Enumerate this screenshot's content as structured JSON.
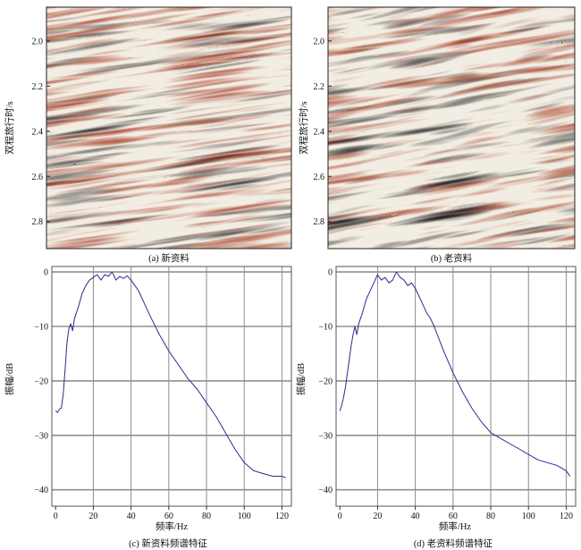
{
  "chart_data": [
    {
      "id": "a",
      "type": "heatmap",
      "caption": "(a) 新资料",
      "ylabel": "双程旅行时/s",
      "ylim": [
        1.85,
        2.92
      ],
      "yticks": [
        2.0,
        2.2,
        2.4,
        2.6,
        2.8
      ],
      "ytick_labels": [
        "2.0",
        "2.2",
        "2.4",
        "2.6",
        "2.8"
      ],
      "colors": {
        "positive": "#a0301c",
        "negative": "#111111",
        "background": "#f2ede2"
      }
    },
    {
      "id": "b",
      "type": "heatmap",
      "caption": "(b) 老资料",
      "ylabel": "双程旅行时/s",
      "ylim": [
        1.85,
        2.92
      ],
      "yticks": [
        2.0,
        2.2,
        2.4,
        2.6,
        2.8
      ],
      "ytick_labels": [
        "2.0",
        "2.2",
        "2.4",
        "2.6",
        "2.8"
      ],
      "colors": {
        "positive": "#a0301c",
        "negative": "#111111",
        "background": "#f2ede2"
      }
    },
    {
      "id": "c",
      "type": "line",
      "caption": "(c) 新资料频谱特征",
      "xlabel": "频率/Hz",
      "ylabel": "振幅/dB",
      "xlim": [
        -2,
        125
      ],
      "ylim": [
        -43,
        1
      ],
      "xticks": [
        0,
        20,
        40,
        60,
        80,
        100,
        120
      ],
      "xtick_labels": [
        "0",
        "20",
        "40",
        "60",
        "80",
        "100",
        "120"
      ],
      "yticks": [
        0,
        -10,
        -20,
        -30,
        -40
      ],
      "ytick_labels": [
        "0",
        "−10",
        "−20",
        "−30",
        "−40"
      ],
      "grid": true,
      "line_color": "#2b2b8f",
      "x": [
        0,
        1,
        2,
        3,
        4,
        5,
        6,
        7,
        8,
        9,
        10,
        12,
        14,
        16,
        18,
        20,
        22,
        24,
        26,
        28,
        30,
        32,
        34,
        36,
        38,
        40,
        42,
        44,
        46,
        48,
        50,
        55,
        60,
        65,
        70,
        75,
        80,
        85,
        90,
        95,
        100,
        105,
        110,
        115,
        120,
        122
      ],
      "y": [
        -25.5,
        -25.8,
        -25.2,
        -25.0,
        -22.5,
        -18.0,
        -13.0,
        -10.5,
        -9.5,
        -10.8,
        -8.5,
        -6.5,
        -4.0,
        -2.5,
        -1.5,
        -1.0,
        -0.5,
        -1.5,
        -0.5,
        -0.8,
        0.0,
        -1.5,
        -0.8,
        -1.2,
        -0.7,
        -1.5,
        -2.5,
        -3.5,
        -5.0,
        -6.5,
        -8.0,
        -11.5,
        -14.5,
        -17.0,
        -19.5,
        -21.5,
        -24.0,
        -26.5,
        -29.5,
        -32.5,
        -35.0,
        -36.5,
        -37.0,
        -37.5,
        -37.5,
        -37.8
      ]
    },
    {
      "id": "d",
      "type": "line",
      "caption": "(d) 老资料频谱特征",
      "xlabel": "频率/Hz",
      "ylabel": "振幅/dB",
      "xlim": [
        -2,
        125
      ],
      "ylim": [
        -43,
        1
      ],
      "xticks": [
        0,
        20,
        40,
        60,
        80,
        100,
        120
      ],
      "xtick_labels": [
        "0",
        "20",
        "40",
        "60",
        "80",
        "100",
        "120"
      ],
      "yticks": [
        0,
        -10,
        -20,
        -30,
        -40
      ],
      "ytick_labels": [
        "0",
        "−10",
        "−20",
        "−30",
        "−40"
      ],
      "grid": true,
      "line_color": "#2b2b8f",
      "x": [
        0,
        1,
        2,
        3,
        4,
        5,
        6,
        7,
        8,
        9,
        10,
        12,
        14,
        16,
        18,
        20,
        22,
        24,
        26,
        28,
        30,
        32,
        34,
        36,
        38,
        40,
        42,
        44,
        46,
        48,
        50,
        55,
        60,
        65,
        70,
        75,
        80,
        85,
        90,
        95,
        100,
        105,
        110,
        115,
        120,
        122
      ],
      "y": [
        -25.5,
        -24.5,
        -23.0,
        -21.0,
        -18.5,
        -16.0,
        -13.5,
        -11.5,
        -10.0,
        -11.5,
        -9.5,
        -7.5,
        -5.0,
        -3.5,
        -2.0,
        -0.5,
        -1.5,
        -1.0,
        -2.0,
        -1.5,
        0.0,
        -1.0,
        -1.5,
        -2.5,
        -2.0,
        -3.0,
        -4.5,
        -6.0,
        -7.5,
        -8.5,
        -10.0,
        -14.5,
        -18.5,
        -22.0,
        -25.0,
        -27.5,
        -29.5,
        -30.5,
        -31.5,
        -32.5,
        -33.5,
        -34.5,
        -35.0,
        -35.5,
        -36.5,
        -37.5
      ]
    }
  ]
}
